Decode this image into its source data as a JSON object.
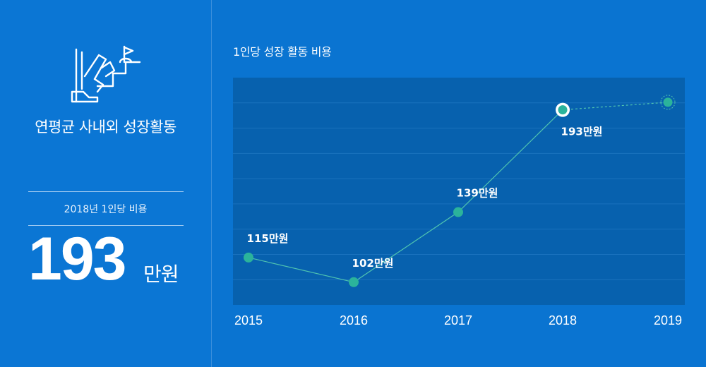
{
  "left_panel": {
    "title": "연평균 사내외 성장활동",
    "stat_label": "2018년 1인당 비용",
    "stat_value": "193",
    "stat_unit": "만원",
    "icon": "climbing-stairs-flag-icon"
  },
  "colors": {
    "background": "#0a74d1",
    "plot_background": "#0761ae",
    "point": "#2bb39b",
    "line": "#4fc4b0",
    "text": "#ffffff"
  },
  "chart_data": {
    "type": "line",
    "title": "1인당 성장 활동 비용",
    "categories": [
      "2015",
      "2016",
      "2017",
      "2018",
      "2019"
    ],
    "values": [
      115,
      102,
      139,
      193,
      197
    ],
    "data_labels": [
      "115만원",
      "102만원",
      "139만원",
      "193만원",
      ""
    ],
    "highlight_index": 3,
    "projected_index": 4,
    "ylim": [
      90,
      210
    ],
    "grid": true
  }
}
